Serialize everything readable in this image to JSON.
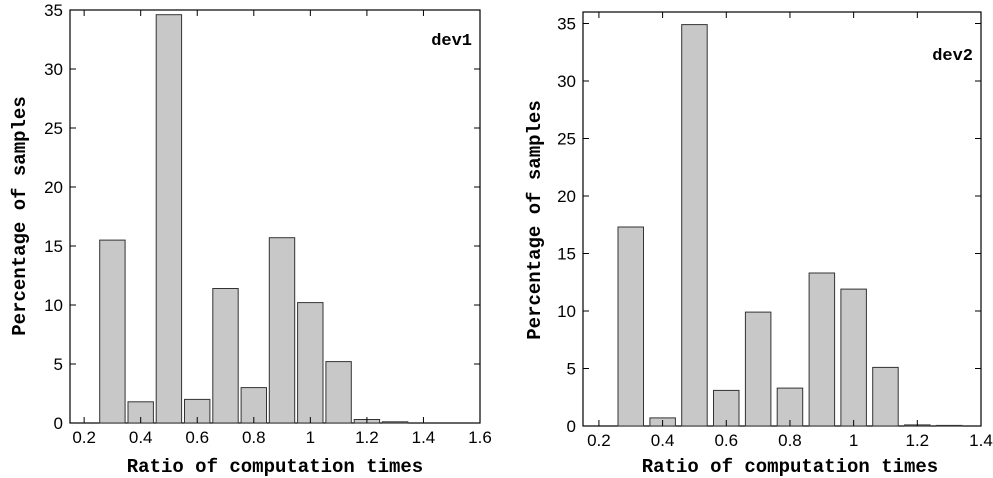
{
  "chart_data": [
    {
      "type": "bar",
      "title": "",
      "annotation": "dev1",
      "xlabel": "Ratio of computation times",
      "ylabel": "Percentage of samples",
      "xlim": [
        0.15,
        1.6
      ],
      "ylim": [
        0,
        35
      ],
      "xticks": [
        0.2,
        0.4,
        0.6,
        0.8,
        1,
        1.2,
        1.4,
        1.6
      ],
      "yticks": [
        0,
        5,
        10,
        15,
        20,
        25,
        30,
        35
      ],
      "bar_width": 0.09,
      "x": [
        0.3,
        0.4,
        0.5,
        0.6,
        0.7,
        0.8,
        0.9,
        1.0,
        1.1,
        1.2,
        1.3
      ],
      "values": [
        15.5,
        1.8,
        34.6,
        2.0,
        11.4,
        3.0,
        15.7,
        10.2,
        5.2,
        0.3,
        0.1
      ],
      "legend": "none",
      "grid": false
    },
    {
      "type": "bar",
      "title": "",
      "annotation": "dev2",
      "xlabel": "Ratio of computation times",
      "ylabel": "Percentage of samples",
      "xlim": [
        0.15,
        1.4
      ],
      "ylim": [
        0,
        36
      ],
      "xticks": [
        0.2,
        0.4,
        0.6,
        0.8,
        1,
        1.2,
        1.4
      ],
      "yticks": [
        0,
        5,
        10,
        15,
        20,
        25,
        30,
        35
      ],
      "bar_width": 0.08,
      "x": [
        0.3,
        0.4,
        0.5,
        0.6,
        0.7,
        0.8,
        0.9,
        1.0,
        1.1,
        1.2,
        1.3
      ],
      "values": [
        17.3,
        0.7,
        34.9,
        3.1,
        9.9,
        3.3,
        13.3,
        11.9,
        5.1,
        0.1,
        0.05
      ],
      "legend": "none",
      "grid": false
    }
  ]
}
